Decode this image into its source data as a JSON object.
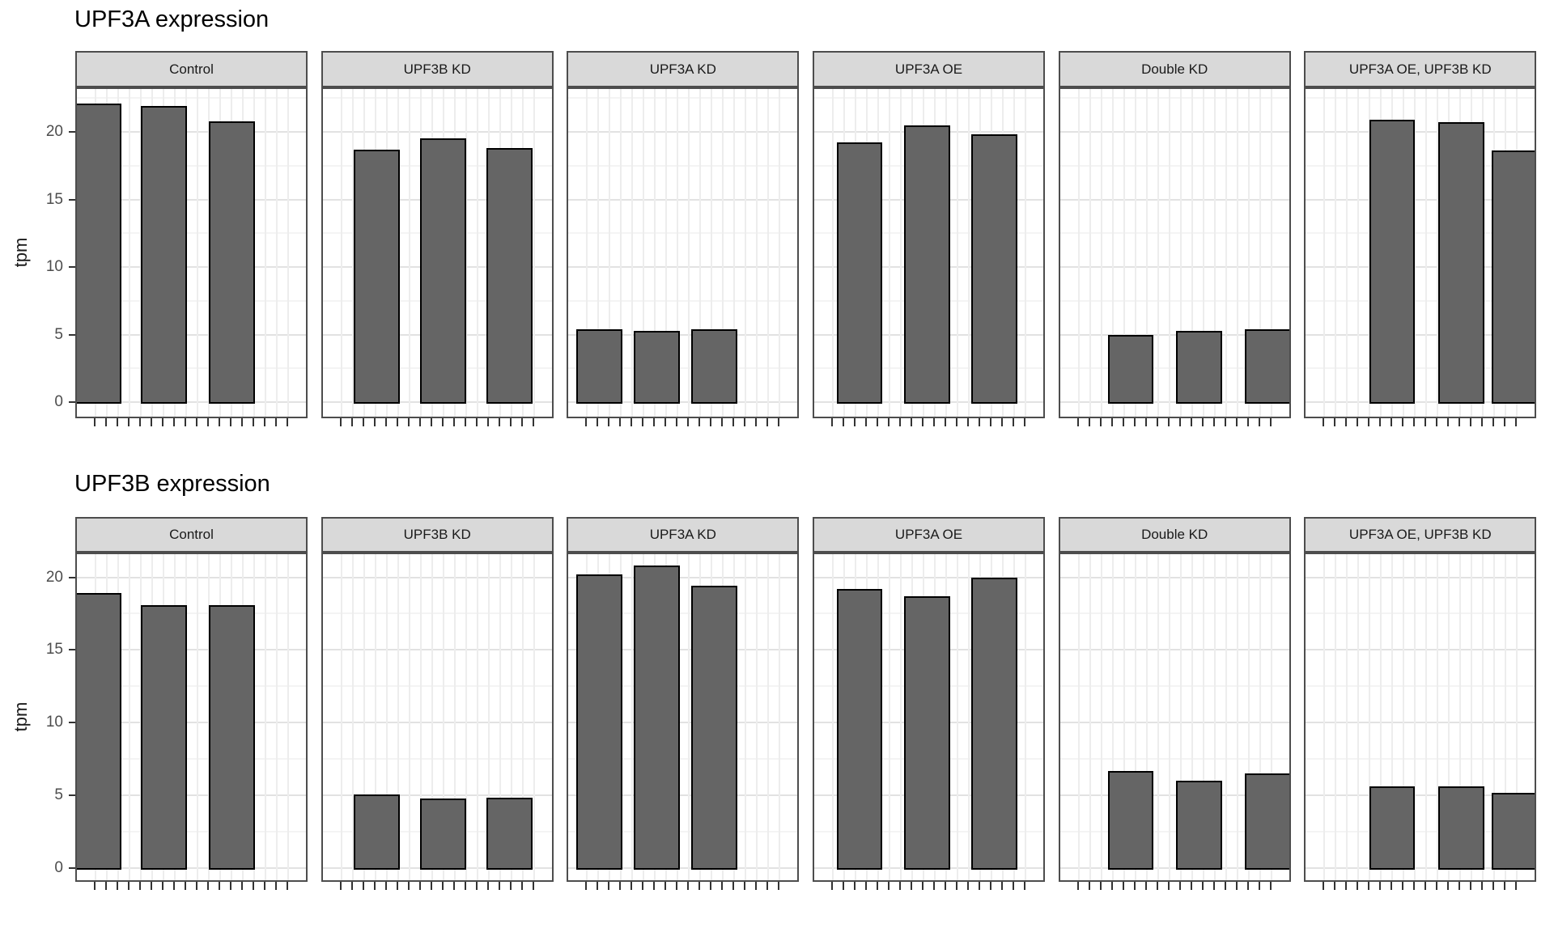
{
  "page": {
    "background": "#ffffff"
  },
  "style": {
    "bar_fill": "#656565",
    "bar_stroke": "#000000",
    "strip_fill": "#d9d9d9",
    "panel_border": "#4d4d4d",
    "grid_major": "#e2e2e2",
    "grid_minor": "#f4f4f4",
    "grid_vertical": "#ededed",
    "tick_color": "#333333",
    "axis_text_color": "#4d4d4d",
    "title_color": "#000000"
  },
  "chart_data": [
    {
      "type": "bar",
      "title": "UPF3A expression",
      "ylabel": "tpm",
      "xlabel": "",
      "ylim": [
        0,
        23.3
      ],
      "yticks": [
        0,
        5,
        10,
        15,
        20
      ],
      "grid": true,
      "legend": false,
      "x_axis_tick_count_per_facet": 18,
      "x_tick_labels": [],
      "facets": [
        {
          "label": "Control",
          "values": [
            22.1,
            21.9,
            20.8
          ],
          "bar_left_frac": [
            0.0,
            0.277,
            0.569
          ]
        },
        {
          "label": "UPF3B KD",
          "values": [
            18.7,
            19.5,
            18.8
          ],
          "bar_left_frac": [
            0.134,
            0.419,
            0.704
          ]
        },
        {
          "label": "UPF3A KD",
          "values": [
            5.4,
            5.3,
            5.4
          ],
          "bar_left_frac": [
            0.034,
            0.281,
            0.528
          ]
        },
        {
          "label": "UPF3A OE",
          "values": [
            19.2,
            20.5,
            19.8
          ],
          "bar_left_frac": [
            0.096,
            0.387,
            0.677
          ]
        },
        {
          "label": "Double KD",
          "values": [
            5.0,
            5.3,
            5.4
          ],
          "bar_left_frac": [
            0.205,
            0.5,
            0.795
          ]
        },
        {
          "label": "UPF3A OE, UPF3B KD",
          "values": [
            20.9,
            20.7,
            18.6
          ],
          "bar_left_frac": [
            0.273,
            0.57,
            0.802
          ]
        }
      ]
    },
    {
      "type": "bar",
      "title": "UPF3B expression",
      "ylabel": "tpm",
      "xlabel": "",
      "ylim": [
        0,
        21.7
      ],
      "yticks": [
        0,
        5,
        10,
        15,
        20
      ],
      "grid": true,
      "legend": false,
      "x_axis_tick_count_per_facet": 18,
      "x_tick_labels": [],
      "facets": [
        {
          "label": "Control",
          "values": [
            18.9,
            18.1,
            18.1
          ],
          "bar_left_frac": [
            0.0,
            0.277,
            0.569
          ]
        },
        {
          "label": "UPF3B KD",
          "values": [
            5.05,
            4.8,
            4.85
          ],
          "bar_left_frac": [
            0.134,
            0.419,
            0.704
          ]
        },
        {
          "label": "UPF3A KD",
          "values": [
            20.2,
            20.8,
            19.4
          ],
          "bar_left_frac": [
            0.034,
            0.281,
            0.528
          ]
        },
        {
          "label": "UPF3A OE",
          "values": [
            19.2,
            18.7,
            20.0
          ],
          "bar_left_frac": [
            0.096,
            0.387,
            0.677
          ]
        },
        {
          "label": "Double KD",
          "values": [
            6.7,
            6.0,
            6.5
          ],
          "bar_left_frac": [
            0.205,
            0.5,
            0.795
          ]
        },
        {
          "label": "UPF3A OE, UPF3B KD",
          "values": [
            5.6,
            5.6,
            5.2
          ],
          "bar_left_frac": [
            0.273,
            0.57,
            0.802
          ]
        }
      ]
    }
  ]
}
